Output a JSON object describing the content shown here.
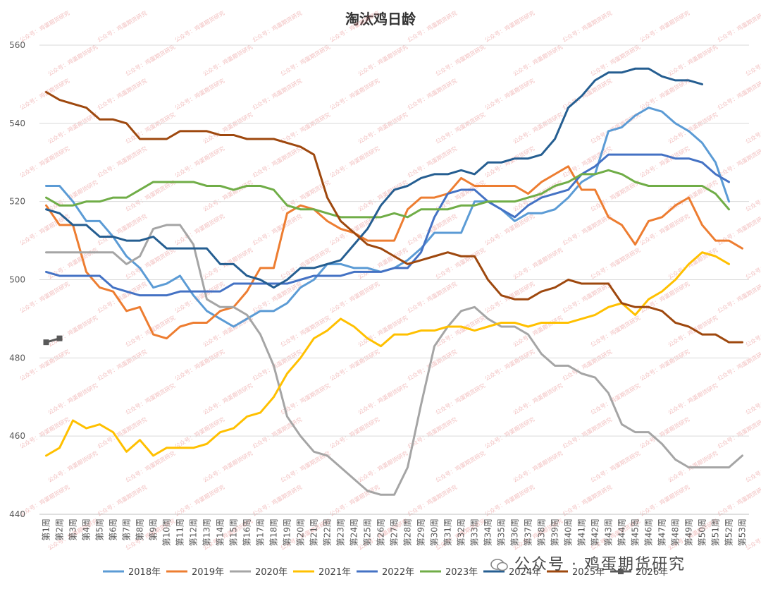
{
  "chart_data": {
    "type": "line",
    "title": "淘汰鸡日龄",
    "ylim": [
      440,
      560
    ],
    "yticks": [
      440,
      460,
      480,
      500,
      520,
      540,
      560
    ],
    "grid": true,
    "legend_position": "bottom",
    "categories": [
      "第1周",
      "第2周",
      "第3周",
      "第4周",
      "第5周",
      "第6周",
      "第7周",
      "第8周",
      "第9周",
      "第10周",
      "第11周",
      "第12周",
      "第13周",
      "第14周",
      "第15周",
      "第16周",
      "第17周",
      "第18周",
      "第19周",
      "第20周",
      "第21周",
      "第22周",
      "第23周",
      "第24周",
      "第25周",
      "第26周",
      "第27周",
      "第28周",
      "第29周",
      "第30周",
      "第31周",
      "第32周",
      "第33周",
      "第34周",
      "第35周",
      "第36周",
      "第37周",
      "第38周",
      "第39周",
      "第40周",
      "第41周",
      "第42周",
      "第43周",
      "第44周",
      "第45周",
      "第46周",
      "第47周",
      "第48周",
      "第49周",
      "第50周",
      "第51周",
      "第52周",
      "第53周"
    ],
    "series": [
      {
        "name": "2018年",
        "color": "#5B9BD5",
        "values": [
          524,
          524,
          520,
          515,
          515,
          511,
          506,
          503,
          498,
          499,
          501,
          496,
          492,
          490,
          488,
          490,
          492,
          492,
          494,
          498,
          500,
          504,
          504,
          503,
          503,
          502,
          503,
          505,
          508,
          512,
          512,
          512,
          520,
          520,
          518,
          515,
          517,
          517,
          518,
          521,
          525,
          527,
          538,
          539,
          542,
          544,
          543,
          540,
          538,
          535,
          530,
          520,
          null
        ]
      },
      {
        "name": "2019年",
        "color": "#ED7D31",
        "values": [
          519,
          514,
          514,
          502,
          498,
          497,
          492,
          493,
          486,
          485,
          488,
          489,
          489,
          492,
          493,
          497,
          503,
          503,
          517,
          519,
          518,
          515,
          513,
          512,
          510,
          510,
          510,
          518,
          521,
          521,
          522,
          526,
          524,
          524,
          524,
          524,
          522,
          525,
          527,
          529,
          523,
          523,
          516,
          514,
          509,
          515,
          516,
          519,
          521,
          514,
          510,
          510,
          508
        ]
      },
      {
        "name": "2020年",
        "color": "#A5A5A5",
        "values": [
          507,
          507,
          507,
          507,
          507,
          507,
          504,
          506,
          513,
          514,
          514,
          509,
          495,
          493,
          493,
          491,
          486,
          478,
          465,
          460,
          456,
          455,
          452,
          449,
          446,
          445,
          445,
          452,
          468,
          483,
          488,
          492,
          493,
          490,
          488,
          488,
          486,
          481,
          478,
          478,
          476,
          475,
          471,
          463,
          461,
          461,
          458,
          454,
          452,
          452,
          452,
          452,
          455
        ]
      },
      {
        "name": "2021年",
        "color": "#FFC000",
        "values": [
          455,
          457,
          464,
          462,
          463,
          461,
          456,
          459,
          455,
          457,
          457,
          457,
          458,
          461,
          462,
          465,
          466,
          470,
          476,
          480,
          485,
          487,
          490,
          488,
          485,
          483,
          486,
          486,
          487,
          487,
          488,
          488,
          487,
          488,
          489,
          489,
          488,
          489,
          489,
          489,
          490,
          491,
          493,
          494,
          491,
          495,
          497,
          500,
          504,
          507,
          506,
          504,
          null
        ]
      },
      {
        "name": "2022年",
        "color": "#4472C4",
        "values": [
          502,
          501,
          501,
          501,
          501,
          498,
          497,
          496,
          496,
          496,
          497,
          497,
          497,
          497,
          499,
          499,
          499,
          499,
          499,
          500,
          501,
          501,
          501,
          502,
          502,
          502,
          503,
          503,
          507,
          516,
          522,
          523,
          523,
          520,
          518,
          516,
          519,
          521,
          522,
          523,
          527,
          529,
          532,
          532,
          532,
          532,
          532,
          531,
          531,
          530,
          527,
          525,
          null
        ]
      },
      {
        "name": "2023年",
        "color": "#70AD47",
        "values": [
          521,
          519,
          519,
          520,
          520,
          521,
          521,
          523,
          525,
          525,
          525,
          525,
          524,
          524,
          523,
          524,
          524,
          523,
          519,
          518,
          518,
          517,
          516,
          516,
          516,
          516,
          517,
          516,
          518,
          518,
          518,
          519,
          519,
          520,
          520,
          520,
          521,
          522,
          524,
          525,
          527,
          527,
          528,
          527,
          525,
          524,
          524,
          524,
          524,
          524,
          522,
          518,
          null
        ]
      },
      {
        "name": "2024年",
        "color": "#255E91",
        "values": [
          518,
          517,
          514,
          514,
          511,
          511,
          510,
          510,
          511,
          508,
          508,
          508,
          508,
          504,
          504,
          501,
          500,
          498,
          500,
          503,
          503,
          504,
          505,
          509,
          513,
          519,
          523,
          524,
          526,
          527,
          527,
          528,
          527,
          530,
          530,
          531,
          531,
          532,
          536,
          544,
          547,
          551,
          553,
          553,
          554,
          554,
          552,
          551,
          551,
          550,
          null,
          null,
          null
        ]
      },
      {
        "name": "2025年",
        "color": "#9E480E",
        "values": [
          548,
          546,
          545,
          544,
          541,
          541,
          540,
          536,
          536,
          536,
          538,
          538,
          538,
          537,
          537,
          536,
          536,
          536,
          535,
          534,
          532,
          521,
          515,
          512,
          509,
          508,
          506,
          504,
          505,
          506,
          507,
          506,
          506,
          500,
          496,
          495,
          495,
          497,
          498,
          500,
          499,
          499,
          499,
          494,
          493,
          493,
          492,
          489,
          488,
          486,
          486,
          484,
          484
        ]
      },
      {
        "name": "2026年",
        "color": "#595959",
        "marker": "square",
        "values": [
          484,
          485,
          null,
          null,
          null,
          null,
          null,
          null,
          null,
          null,
          null,
          null,
          null,
          null,
          null,
          null,
          null,
          null,
          null,
          null,
          null,
          null,
          null,
          null,
          null,
          null,
          null,
          null,
          null,
          null,
          null,
          null,
          null,
          null,
          null,
          null,
          null,
          null,
          null,
          null,
          null,
          null,
          null,
          null,
          null,
          null,
          null,
          null,
          null,
          null,
          null,
          null,
          null
        ]
      }
    ]
  },
  "watermark": {
    "text": "公众号 · 鸡蛋期货研究",
    "repeat_text": "公众号：鸡蛋期货研究"
  }
}
